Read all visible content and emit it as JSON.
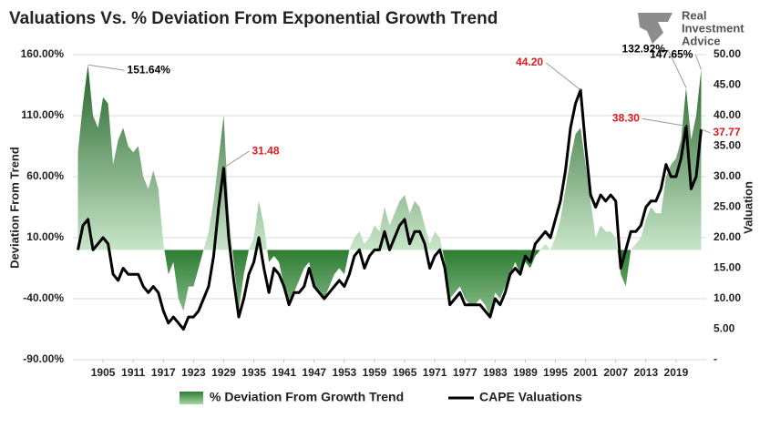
{
  "chart_data": {
    "type": "combo",
    "title": "Valuations Vs. % Deviation From Exponential Growth Trend",
    "y_label": "Deviation From Trend",
    "y2_label": "Valuation",
    "x": [
      1900,
      1901,
      1902,
      1903,
      1904,
      1905,
      1906,
      1907,
      1908,
      1909,
      1910,
      1911,
      1912,
      1913,
      1914,
      1915,
      1916,
      1917,
      1918,
      1919,
      1920,
      1921,
      1922,
      1923,
      1924,
      1925,
      1926,
      1927,
      1928,
      1929,
      1930,
      1931,
      1932,
      1933,
      1934,
      1935,
      1936,
      1937,
      1938,
      1939,
      1940,
      1941,
      1942,
      1943,
      1944,
      1945,
      1946,
      1947,
      1948,
      1949,
      1950,
      1951,
      1952,
      1953,
      1954,
      1955,
      1956,
      1957,
      1958,
      1959,
      1960,
      1961,
      1962,
      1963,
      1964,
      1965,
      1966,
      1967,
      1968,
      1969,
      1970,
      1971,
      1972,
      1973,
      1974,
      1975,
      1976,
      1977,
      1978,
      1979,
      1980,
      1981,
      1982,
      1983,
      1984,
      1985,
      1986,
      1987,
      1988,
      1989,
      1990,
      1991,
      1992,
      1993,
      1994,
      1995,
      1996,
      1997,
      1998,
      1999,
      2000,
      2001,
      2002,
      2003,
      2004,
      2005,
      2006,
      2007,
      2008,
      2009,
      2010,
      2011,
      2012,
      2013,
      2014,
      2015,
      2016,
      2017,
      2018,
      2019,
      2020,
      2021,
      2022,
      2023,
      2024
    ],
    "xlim": [
      1899,
      2025
    ],
    "xticks": [
      1905,
      1911,
      1917,
      1923,
      1929,
      1935,
      1941,
      1947,
      1953,
      1959,
      1965,
      1971,
      1977,
      1983,
      1989,
      1995,
      2001,
      2007,
      2013,
      2019
    ],
    "ylim": [
      -90,
      160
    ],
    "yticks": [
      {
        "value": 160,
        "label": "160.00%"
      },
      {
        "value": 110,
        "label": "110.00%"
      },
      {
        "value": 60,
        "label": "60.00%"
      },
      {
        "value": 10,
        "label": "10.00%"
      },
      {
        "value": -40,
        "label": "-40.00%"
      },
      {
        "value": -90,
        "label": "-90.00%"
      }
    ],
    "y2lim": [
      0,
      50
    ],
    "y2ticks": [
      {
        "value": 50,
        "label": "50.00"
      },
      {
        "value": 45,
        "label": "45.00"
      },
      {
        "value": 40,
        "label": "40.00"
      },
      {
        "value": 35,
        "label": "35.00"
      },
      {
        "value": 30,
        "label": "30.00"
      },
      {
        "value": 25,
        "label": "25.00"
      },
      {
        "value": 20,
        "label": "20.00"
      },
      {
        "value": 15,
        "label": "15.00"
      },
      {
        "value": 10,
        "label": "10.00"
      },
      {
        "value": 5,
        "label": "5.00"
      },
      {
        "value": 0,
        "label": "-"
      }
    ],
    "grid": true,
    "legend": "bottom",
    "series": [
      {
        "name": "% Deviation From Growth Trend",
        "type": "area",
        "color": "#2e7d32",
        "values": [
          80,
          120,
          151.64,
          110,
          100,
          125,
          120,
          70,
          90,
          100,
          85,
          80,
          85,
          60,
          50,
          65,
          50,
          5,
          -20,
          -10,
          -40,
          -50,
          -30,
          -30,
          -15,
          0,
          15,
          40,
          75,
          110,
          30,
          -10,
          -50,
          -20,
          0,
          10,
          40,
          20,
          -10,
          -5,
          -10,
          -30,
          -45,
          -35,
          -25,
          -15,
          -10,
          -30,
          -35,
          -40,
          -30,
          -20,
          -15,
          -20,
          0,
          10,
          15,
          5,
          10,
          20,
          15,
          35,
          20,
          30,
          40,
          45,
          30,
          40,
          35,
          20,
          5,
          15,
          10,
          -10,
          -40,
          -35,
          -30,
          -40,
          -45,
          -45,
          -40,
          -45,
          -55,
          -35,
          -40,
          -30,
          -20,
          -10,
          -20,
          -10,
          -15,
          -5,
          0,
          5,
          0,
          10,
          25,
          50,
          75,
          95,
          100,
          70,
          40,
          10,
          20,
          15,
          15,
          10,
          -20,
          -30,
          0,
          5,
          10,
          25,
          35,
          30,
          30,
          60,
          70,
          75,
          90,
          132.92,
          90,
          110,
          147.65
        ]
      },
      {
        "name": "CAPE Valuations",
        "type": "line",
        "axis": "y2",
        "color": "#000000",
        "values": [
          18,
          22,
          23,
          18,
          19,
          20,
          19,
          14,
          13,
          15,
          14,
          14,
          14,
          12,
          11,
          12,
          11,
          8,
          6,
          7,
          6,
          5,
          7,
          7,
          8,
          10,
          12,
          17,
          25,
          31.48,
          20,
          13,
          7,
          10,
          14,
          16,
          20,
          15,
          11,
          15,
          14,
          12,
          9,
          11,
          11,
          12,
          15,
          12,
          11,
          10,
          11,
          12,
          13,
          12,
          14,
          17,
          18,
          15,
          17,
          18,
          18,
          21,
          18,
          20,
          22,
          23,
          19,
          21,
          21,
          19,
          15,
          17,
          18,
          15,
          9,
          10,
          11,
          9,
          9,
          9,
          9,
          8,
          7,
          10,
          9,
          11,
          14,
          15,
          14,
          17,
          16,
          19,
          20,
          21,
          20,
          23,
          26,
          31,
          38,
          42,
          44.2,
          35,
          27,
          25,
          27,
          26,
          27,
          26,
          15,
          18,
          21,
          21,
          22,
          25,
          26,
          26,
          28,
          32,
          30,
          30,
          33,
          38.3,
          28,
          30,
          37.77
        ]
      }
    ],
    "annotations": [
      {
        "label": "151.64%",
        "x": 1902,
        "value": 151.64,
        "axis": "y",
        "color": "#000000"
      },
      {
        "label": "31.48",
        "x": 1929,
        "value": 31.48,
        "axis": "y2",
        "color": "#e31a1c"
      },
      {
        "label": "44.20",
        "x": 2000,
        "value": 44.2,
        "axis": "y2",
        "color": "#e31a1c"
      },
      {
        "label": "132.92%",
        "x": 2021,
        "value": 132.92,
        "axis": "y",
        "color": "#000000"
      },
      {
        "label": "147.65%",
        "x": 2024,
        "value": 147.65,
        "axis": "y",
        "color": "#000000"
      },
      {
        "label": "38.30",
        "x": 2021,
        "value": 38.3,
        "axis": "y2",
        "color": "#e31a1c"
      },
      {
        "label": "37.77",
        "x": 2024,
        "value": 37.77,
        "axis": "y2",
        "color": "#e31a1c"
      }
    ]
  },
  "logo": {
    "lines": [
      "Real",
      "Investment",
      "Advice"
    ]
  }
}
